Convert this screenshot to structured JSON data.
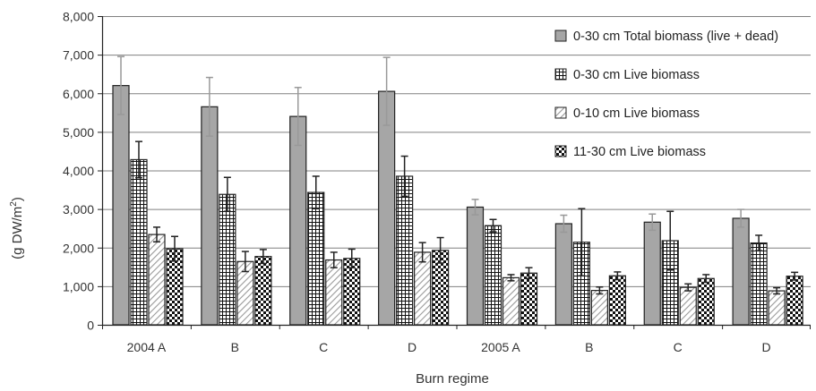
{
  "chart_data": {
    "type": "bar",
    "title": "",
    "xlabel": "Burn regime",
    "ylabel": "(g DW/m",
    "ylabel_sup": "2",
    "ylabel_close": ")",
    "ylim": [
      0,
      8000
    ],
    "yticks": [
      0,
      1000,
      2000,
      3000,
      4000,
      5000,
      6000,
      7000,
      8000
    ],
    "ytick_labels": [
      "0",
      "1,000",
      "2,000",
      "3,000",
      "4,000",
      "5,000",
      "6,000",
      "7,000",
      "8,000"
    ],
    "grid": true,
    "legend_position": "top-right",
    "categories": [
      "2004 A",
      "B",
      "C",
      "D",
      "2005 A",
      "B",
      "C",
      "D"
    ],
    "series": [
      {
        "name": "0-30 cm Total biomass (live + dead)",
        "pattern": "solid-gray",
        "values": [
          6200,
          5650,
          5400,
          6050,
          3050,
          2620,
          2660,
          2760
        ],
        "errors": [
          750,
          760,
          750,
          880,
          200,
          220,
          210,
          230
        ],
        "error_color": "#999999"
      },
      {
        "name": "0-30 cm Live biomass",
        "pattern": "grid",
        "values": [
          4280,
          3380,
          3430,
          3850,
          2570,
          2140,
          2180,
          2120
        ],
        "errors": [
          470,
          440,
          420,
          520,
          160,
          870,
          760,
          200
        ],
        "error_color": "#222222"
      },
      {
        "name": "0-10 cm Live biomass",
        "pattern": "diagonal",
        "values": [
          2340,
          1640,
          1680,
          1880,
          1220,
          890,
          970,
          880
        ],
        "errors": [
          190,
          260,
          200,
          250,
          80,
          90,
          90,
          80
        ],
        "error_color": "#222222"
      },
      {
        "name": "11-30 cm Live biomass",
        "pattern": "checker",
        "values": [
          1970,
          1770,
          1720,
          1930,
          1340,
          1270,
          1200,
          1260
        ],
        "errors": [
          320,
          180,
          240,
          330,
          140,
          100,
          100,
          100
        ],
        "error_color": "#222222"
      }
    ],
    "colors": {
      "gray_bar": "#a6a6a6",
      "gridline": "#808080",
      "axis": "#222222"
    }
  }
}
